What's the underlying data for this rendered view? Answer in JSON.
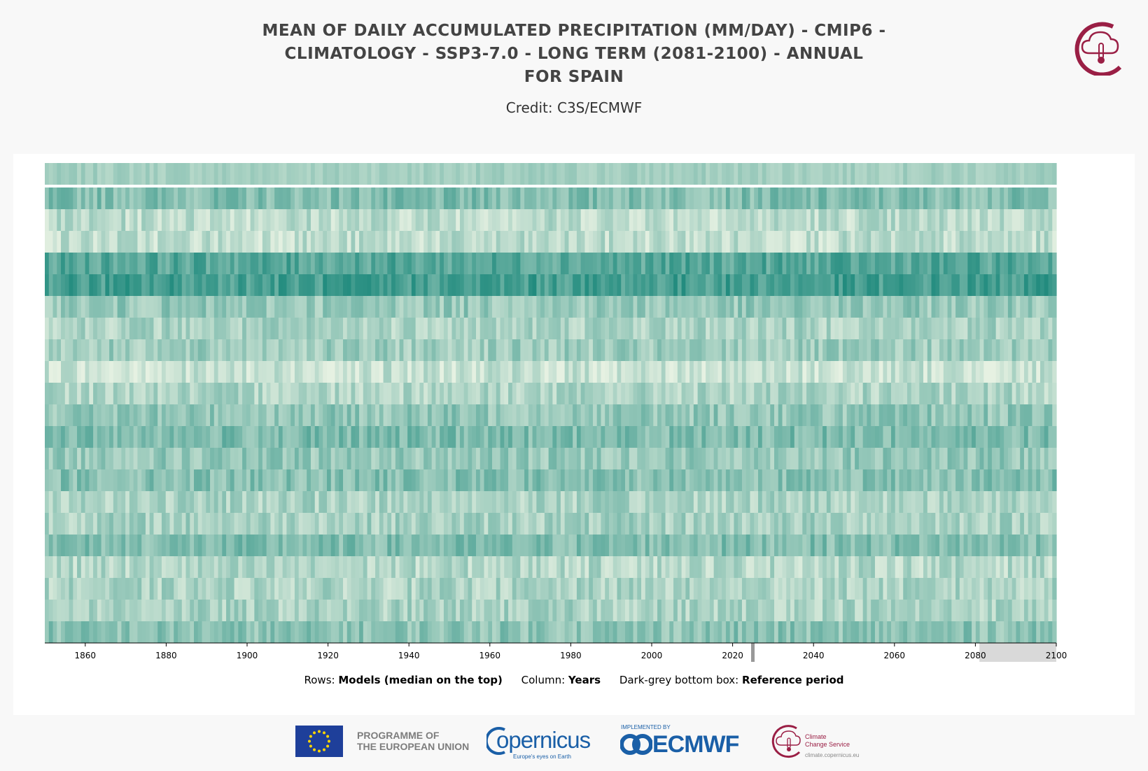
{
  "header": {
    "title_lines": [
      "MEAN OF DAILY ACCUMULATED PRECIPITATION (MM/DAY) - CMIP6 -",
      "CLIMATOLOGY - SSP3-7.0 - LONG TERM (2081-2100) - ANNUAL",
      "FOR SPAIN"
    ],
    "credit": "Credit: C3S/ECMWF"
  },
  "chart_data": {
    "type": "heatmap",
    "rows_label": "Models (median on the top)",
    "columns_label": "Years",
    "x_range": [
      1850,
      2100
    ],
    "x_ticks": [
      1860,
      1880,
      1900,
      1920,
      1940,
      1960,
      1980,
      2000,
      2020,
      2040,
      2060,
      2080,
      2100
    ],
    "grid": false,
    "colormap": [
      "#e6f1e2",
      "#1f8a7d"
    ],
    "median_row": "top",
    "model_rows": 21,
    "model_row_means": [
      0.5,
      0.22,
      0.2,
      0.72,
      0.8,
      0.4,
      0.3,
      0.35,
      0.15,
      0.28,
      0.42,
      0.52,
      0.4,
      0.48,
      0.3,
      0.32,
      0.5,
      0.25,
      0.28,
      0.3,
      0.45
    ],
    "reference_period": [
      2081,
      2100
    ],
    "current_year": 2025
  },
  "legend": {
    "rows_prefix": "Rows:",
    "rows_value": "Models (median on the top)",
    "column_prefix": "Column:",
    "column_value": "Years",
    "box_prefix": "Dark-grey bottom box:",
    "box_value": "Reference period"
  },
  "footer": {
    "eu_text_1": "PROGRAMME OF",
    "eu_text_2": "THE EUROPEAN UNION",
    "copernicus": "opernicus",
    "copernicus_tagline": "Europe's eyes on Earth",
    "implemented_by": "IMPLEMENTED BY",
    "ecmwf": "ECMWF",
    "c3s_line1": "Climate",
    "c3s_line2": "Change Service",
    "c3s_url": "climate.copernicus.eu"
  },
  "colors": {
    "brand_red": "#9a1f45",
    "copernicus_blue": "#1a5fa7",
    "eu_blue": "#1e3f9a"
  }
}
